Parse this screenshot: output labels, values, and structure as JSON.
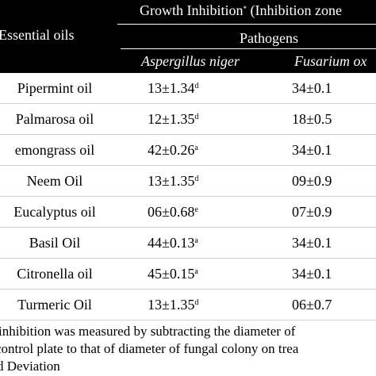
{
  "table": {
    "header": {
      "title_text": "Growth Inhibition",
      "title_mark": "*",
      "title_suffix": " (Inhibition zone",
      "first_column": "Essential oils",
      "group_label": "Pathogens",
      "species": [
        "Aspergillus niger",
        "Fusarium ox"
      ]
    },
    "rows": [
      {
        "oil": "Pipermint oil",
        "a_value": "13±1.34",
        "a_sup": "d",
        "f_value": "34±0.1"
      },
      {
        "oil": "Palmarosa oil",
        "a_value": "12±1.35",
        "a_sup": "d",
        "f_value": "18±0.5"
      },
      {
        "oil": "emongrass oil",
        "a_value": "42±0.26",
        "a_sup": "a",
        "f_value": "34±0.1"
      },
      {
        "oil": "Neem  Oil",
        "a_value": "13±1.35",
        "a_sup": "d",
        "f_value": "09±0.9"
      },
      {
        "oil": "Eucalyptus oil",
        "a_value": "06±0.68",
        "a_sup": "e",
        "f_value": "07±0.9"
      },
      {
        "oil": "Basil Oil",
        "a_value": "44±0.13",
        "a_sup": "a",
        "f_value": "34±0.1"
      },
      {
        "oil": "Citronella oil",
        "a_value": "45±0.15",
        "a_sup": "a",
        "f_value": "34±0.1"
      },
      {
        "oil": "Turmeric  Oil",
        "a_value": "13±1.35",
        "a_sup": "d",
        "f_value": "06±0.7"
      }
    ]
  },
  "footnotes": [
    "inhibition was measured by subtracting the diameter of",
    "control plate to that of diameter of fungal colony on trea",
    "d Deviation"
  ]
}
